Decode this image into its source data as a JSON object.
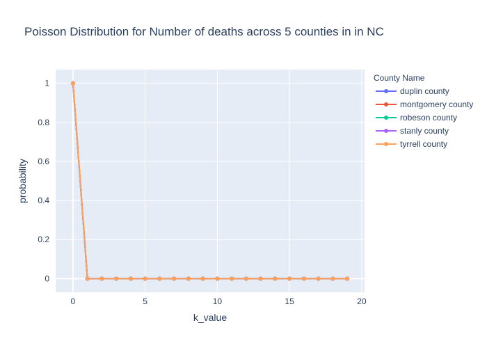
{
  "chart_data": {
    "type": "line",
    "title": "Poisson Distribution for Number of deaths across 5 counties in in NC",
    "xlabel": "k_value",
    "ylabel": "probability",
    "xlim": [
      -1.2,
      20.2
    ],
    "ylim": [
      -0.07,
      1.07
    ],
    "x_ticks": [
      0,
      5,
      10,
      15,
      20
    ],
    "y_ticks": [
      0,
      0.2,
      0.4,
      0.6,
      0.8,
      1
    ],
    "x_tick_labels": [
      "0",
      "5",
      "10",
      "15",
      "20"
    ],
    "y_tick_labels": [
      "0",
      "0.2",
      "0.4",
      "0.6",
      "0.8",
      "1"
    ],
    "grid": true,
    "legend": {
      "title": "County Name",
      "position": "right"
    },
    "x": [
      0,
      1,
      2,
      3,
      4,
      5,
      6,
      7,
      8,
      9,
      10,
      11,
      12,
      13,
      14,
      15,
      16,
      17,
      18,
      19
    ],
    "series": [
      {
        "name": "duplin county",
        "color": "#636efa",
        "values": [
          1,
          0,
          0,
          0,
          0,
          0,
          0,
          0,
          0,
          0,
          0,
          0,
          0,
          0,
          0,
          0,
          0,
          0,
          0,
          0
        ]
      },
      {
        "name": "montgomery county",
        "color": "#ef553b",
        "values": [
          1,
          0,
          0,
          0,
          0,
          0,
          0,
          0,
          0,
          0,
          0,
          0,
          0,
          0,
          0,
          0,
          0,
          0,
          0,
          0
        ]
      },
      {
        "name": "robeson county",
        "color": "#00cc96",
        "values": [
          1,
          0,
          0,
          0,
          0,
          0,
          0,
          0,
          0,
          0,
          0,
          0,
          0,
          0,
          0,
          0,
          0,
          0,
          0,
          0
        ]
      },
      {
        "name": "stanly county",
        "color": "#ab63fa",
        "values": [
          1,
          0,
          0,
          0,
          0,
          0,
          0,
          0,
          0,
          0,
          0,
          0,
          0,
          0,
          0,
          0,
          0,
          0,
          0,
          0
        ]
      },
      {
        "name": "tyrrell county",
        "color": "#ffa15a",
        "values": [
          1,
          0,
          0,
          0,
          0,
          0,
          0,
          0,
          0,
          0,
          0,
          0,
          0,
          0,
          0,
          0,
          0,
          0,
          0,
          0
        ]
      }
    ],
    "plot_background": "#e5ecf6",
    "grid_color": "#ffffff"
  }
}
